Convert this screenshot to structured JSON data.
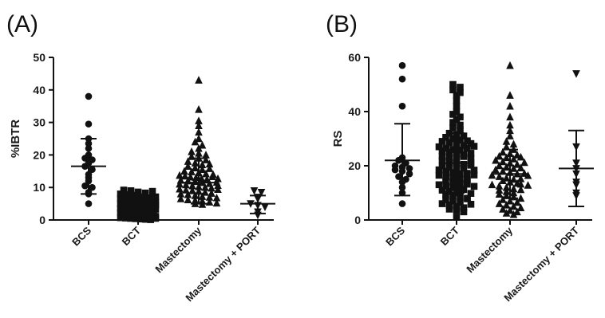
{
  "chart_data": [
    {
      "type": "scatter",
      "panel_label": "(A)",
      "ylabel": "%IBTR",
      "ylim": [
        0,
        50
      ],
      "yticks": [
        0,
        10,
        20,
        30,
        40,
        50
      ],
      "categories": [
        "BCS",
        "BCT",
        "Mastectomy",
        "Mastectomy + PORT"
      ],
      "series": [
        {
          "category": "BCS",
          "marker": "circle",
          "mean": 16.5,
          "sd_low": 8,
          "sd_high": 25,
          "values": [
            38,
            29.5,
            25,
            23.5,
            22,
            20,
            19,
            18.5,
            17.5,
            16.5,
            15.5,
            14,
            13,
            12,
            10.5,
            10,
            8.5,
            8,
            5
          ]
        },
        {
          "category": "BCT",
          "marker": "square",
          "mean": 4,
          "sd_low": 1,
          "sd_high": 7,
          "values": [
            9.2,
            9,
            8.6,
            8.3,
            8,
            7.8,
            7.6,
            7.3,
            7,
            6.8,
            6.6,
            6.4,
            6.2,
            6,
            5.8,
            5.6,
            5.4,
            5.2,
            5,
            4.9,
            4.8,
            4.6,
            4.5,
            4.4,
            4.3,
            4.2,
            4.1,
            4,
            3.9,
            3.8,
            3.7,
            3.6,
            3.5,
            3.4,
            3.3,
            3.2,
            3.1,
            3,
            2.9,
            2.8,
            2.7,
            2.6,
            2.5,
            2.4,
            2.3,
            2.2,
            2.1,
            2,
            1.9,
            1.8,
            1.7,
            1.6,
            1.5,
            1.4,
            1.3,
            1.2,
            1.1,
            1,
            0.9,
            0.8,
            0.7,
            0.6,
            0.5,
            0.4,
            0.3,
            0.2,
            0.1,
            6.5,
            5.5,
            4.5,
            3.5,
            2.5,
            1.5,
            0.5,
            8.8,
            7.1,
            3.3,
            2.2,
            1.1,
            4.7
          ]
        },
        {
          "category": "Mastectomy",
          "marker": "triangle-up",
          "mean": 11.5,
          "sd_low": 5,
          "sd_high": 19,
          "values": [
            43,
            34,
            30.5,
            29,
            27,
            25,
            24,
            23,
            22,
            21,
            20.5,
            20,
            19.5,
            19,
            18.5,
            18,
            17.5,
            17,
            16.5,
            16,
            15.5,
            15,
            14.8,
            14.5,
            14.2,
            14,
            13.7,
            13.5,
            13.2,
            13,
            12.8,
            12.5,
            12.2,
            12,
            11.8,
            11.5,
            11.2,
            11,
            10.8,
            10.5,
            10.2,
            10,
            9.8,
            9.5,
            9.2,
            9,
            8.8,
            8.5,
            8.2,
            8,
            7.8,
            7.5,
            7.2,
            7,
            6.8,
            6.5,
            6.2,
            6,
            5.8,
            5.5,
            5.2,
            5,
            4.8,
            13.3,
            11.6,
            9.4,
            15.8,
            17.2,
            12.7,
            10.6
          ]
        },
        {
          "category": "Mastectomy + PORT",
          "marker": "triangle-down",
          "mean": 5,
          "sd_low": 2,
          "sd_high": 7.5,
          "values": [
            9,
            8.5,
            7,
            6.5,
            5,
            4.5,
            4,
            2.5,
            1.5
          ]
        }
      ]
    },
    {
      "type": "scatter",
      "panel_label": "(B)",
      "ylabel": "RS",
      "ylim": [
        0,
        60
      ],
      "yticks": [
        0,
        20,
        40,
        60
      ],
      "categories": [
        "BCS",
        "BCT",
        "Mastectomy",
        "Mastectomy + PORT"
      ],
      "series": [
        {
          "category": "BCS",
          "marker": "circle",
          "mean": 22,
          "sd_low": 9,
          "sd_high": 35.5,
          "values": [
            57,
            52,
            42,
            23,
            22,
            21,
            20,
            19.5,
            19,
            18.5,
            18,
            17,
            16,
            15,
            14,
            12,
            10,
            6
          ]
        },
        {
          "category": "BCT",
          "marker": "square",
          "mean": 21,
          "sd_low": 10,
          "sd_high": 32,
          "values": [
            50,
            49,
            48,
            47,
            46,
            44,
            42,
            40,
            39,
            38,
            37,
            36,
            35,
            34,
            33,
            32,
            31.5,
            31,
            30.5,
            30,
            29.5,
            29,
            28.5,
            28,
            27.5,
            27,
            26.5,
            26,
            25.5,
            25,
            24.5,
            24,
            23.5,
            23,
            22.5,
            22,
            21.5,
            21,
            20.5,
            20,
            19.5,
            19,
            18.5,
            18,
            17.5,
            17,
            16.5,
            16,
            15.5,
            15,
            14.5,
            14,
            13.5,
            13,
            12.5,
            12,
            11.5,
            11,
            10.5,
            10,
            9.5,
            9,
            8.5,
            8,
            7.5,
            7,
            6.5,
            6,
            5.5,
            5,
            4.5,
            4,
            3.5,
            3,
            1,
            28.2,
            25.8,
            23.4,
            21.2,
            19.2,
            17.2,
            15.2,
            13.2,
            11.2,
            26.4,
            22.8,
            18.4,
            14.8,
            24.6,
            20.2,
            16.6,
            12.4,
            29.2,
            27.2,
            9.8,
            7.8,
            5.8
          ]
        },
        {
          "category": "Mastectomy",
          "marker": "triangle-up",
          "mean": 17,
          "sd_low": 8,
          "sd_high": 26,
          "values": [
            57,
            46,
            42,
            38,
            35,
            33,
            31,
            29,
            28,
            27,
            26,
            25,
            24.5,
            24,
            23.5,
            23,
            22.5,
            22,
            21.5,
            21,
            20.5,
            20,
            19.5,
            19,
            18.5,
            18,
            17.5,
            17,
            16.5,
            16,
            15.5,
            15,
            14.5,
            14,
            13.5,
            13,
            12.5,
            12,
            11.5,
            11,
            10.5,
            10,
            9.5,
            9,
            8.5,
            8,
            7.5,
            7,
            6.5,
            6,
            5.5,
            5,
            4.5,
            4,
            3.5,
            3,
            2.5,
            2,
            19.2,
            17.2,
            15.2,
            13.2,
            11.2,
            21.2,
            23.2,
            16.4,
            12.8
          ]
        },
        {
          "category": "Mastectomy + PORT",
          "marker": "triangle-down",
          "mean": 19,
          "sd_low": 5,
          "sd_high": 33,
          "values": [
            54,
            27,
            21,
            19,
            17,
            14,
            13,
            10,
            9
          ]
        }
      ]
    }
  ]
}
